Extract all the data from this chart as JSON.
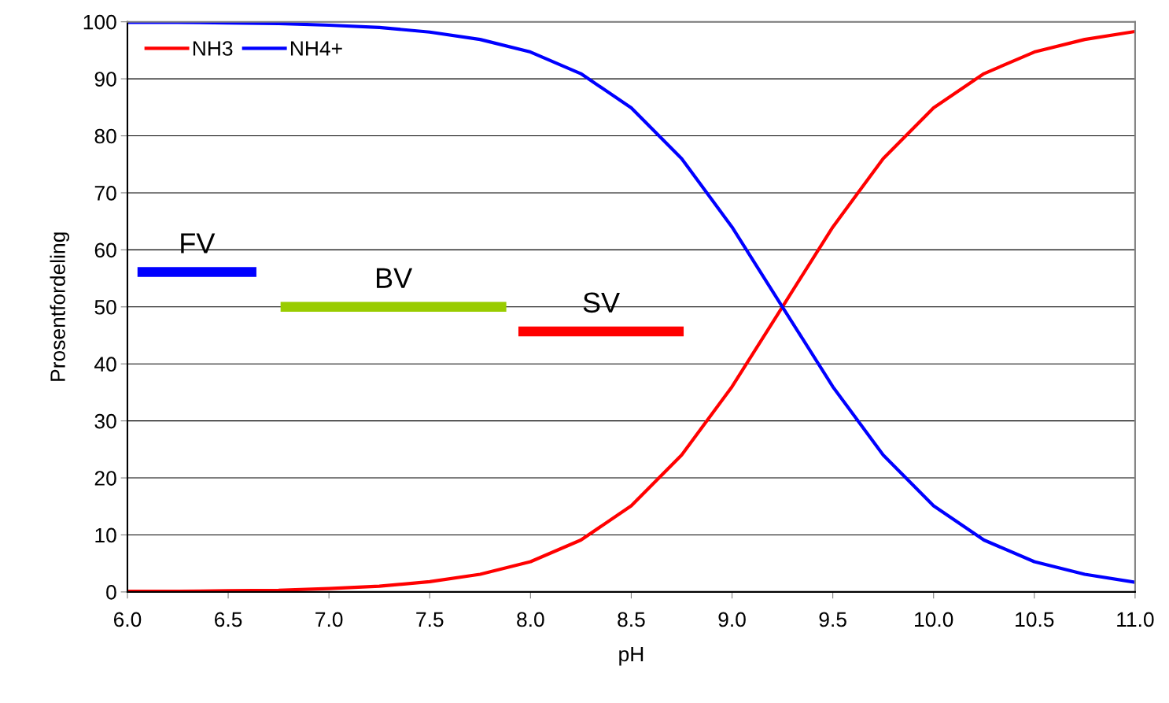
{
  "chart_data": {
    "type": "line",
    "xlabel": "pH",
    "ylabel": "Prosentfordeling",
    "xlim": [
      6,
      11
    ],
    "ylim": [
      0,
      100
    ],
    "xticks": [
      {
        "value": 6,
        "label": "6.0"
      },
      {
        "value": 6.5,
        "label": "6.5"
      },
      {
        "value": 7,
        "label": "7.0"
      },
      {
        "value": 7.5,
        "label": "7.5"
      },
      {
        "value": 8,
        "label": "8.0"
      },
      {
        "value": 8.5,
        "label": "8.5"
      },
      {
        "value": 9,
        "label": "9.0"
      },
      {
        "value": 9.5,
        "label": "9.5"
      },
      {
        "value": 10,
        "label": "10.0"
      },
      {
        "value": 10.5,
        "label": "10.5"
      },
      {
        "value": 11,
        "label": "11.0"
      }
    ],
    "yticks": [
      0,
      10,
      20,
      30,
      40,
      50,
      60,
      70,
      80,
      90,
      100
    ],
    "grid": "y",
    "legend": "top left",
    "marker": "none",
    "line_style": "solid",
    "x": [
      6,
      6.25,
      6.5,
      6.75,
      7,
      7.25,
      7.5,
      7.75,
      8,
      8.25,
      8.5,
      8.75,
      9,
      9.25,
      9.5,
      9.75,
      10,
      10.25,
      10.5,
      10.75,
      11
    ],
    "series": [
      {
        "name": "NH3",
        "color": "#ff0000",
        "values": [
          0.1,
          0.1,
          0.2,
          0.3,
          0.6,
          1.0,
          1.8,
          3.1,
          5.3,
          9.1,
          15.1,
          24.0,
          36.0,
          50.0,
          64.0,
          76.0,
          84.9,
          90.9,
          94.7,
          96.9,
          98.3
        ]
      },
      {
        "name": "NH4+",
        "color": "#0000ff",
        "values": [
          99.9,
          99.9,
          99.8,
          99.7,
          99.4,
          99.0,
          98.2,
          96.9,
          94.7,
          90.9,
          84.9,
          76.0,
          64.0,
          50.0,
          36.0,
          24.0,
          15.1,
          9.1,
          5.3,
          3.1,
          1.7
        ]
      },
      {
        "name": "FV",
        "color": "#0000ff",
        "x": [
          6.05,
          6.64
        ],
        "values": [
          56.1,
          56.1
        ]
      },
      {
        "name": "BV",
        "color": "#99cc00",
        "x": [
          6.76,
          7.88
        ],
        "values": [
          50.0,
          50.0
        ]
      },
      {
        "name": "SV",
        "color": "#ff0000",
        "x": [
          7.94,
          8.76
        ],
        "values": [
          45.7,
          45.7
        ]
      }
    ]
  }
}
